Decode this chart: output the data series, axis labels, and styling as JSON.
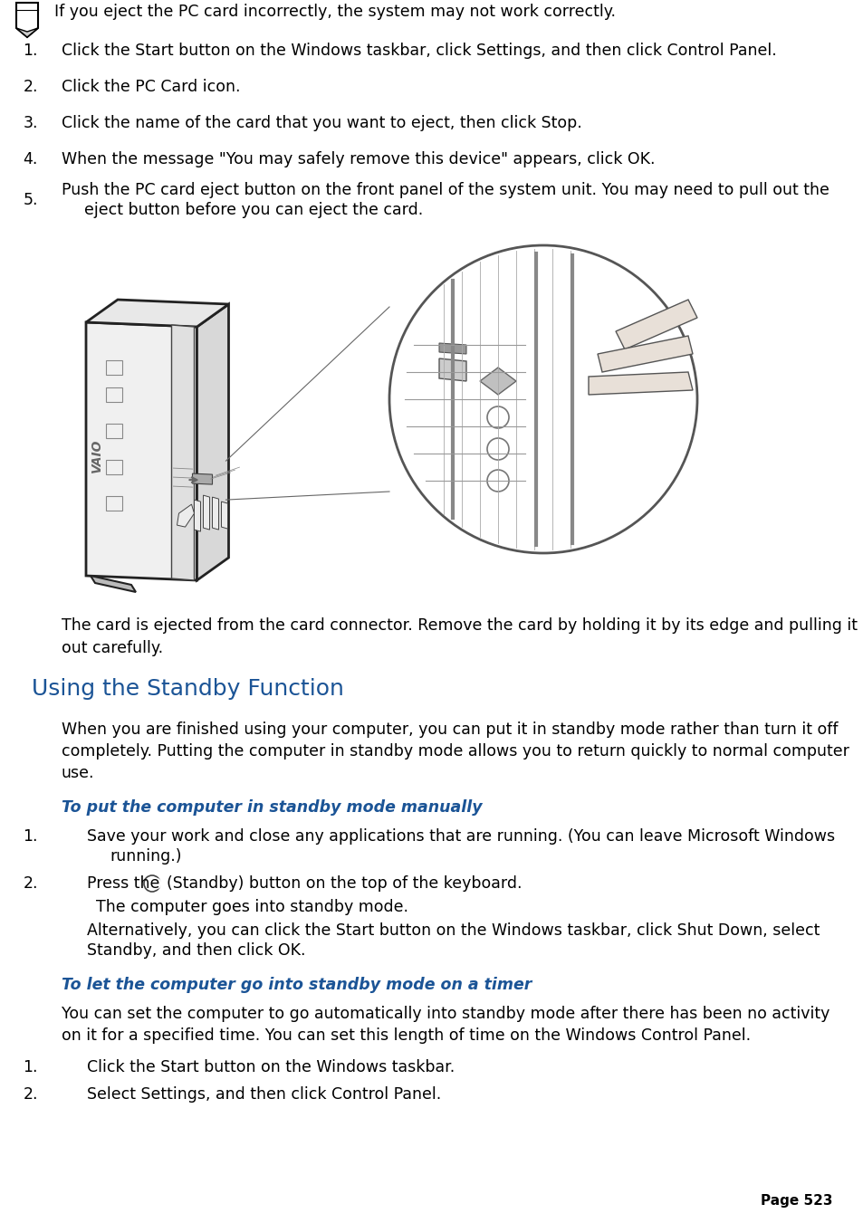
{
  "bg_color": "#ffffff",
  "text_color": "#000000",
  "blue_heading": "#1b5496",
  "blue_subheading": "#1b5496",
  "warning_text": "If you eject the PC card incorrectly, the system may not work correctly.",
  "numbered_items": [
    "Click the Start button on the Windows taskbar, click Settings, and then click Control Panel.",
    "Click the PC Card icon.",
    "Click the name of the card that you want to eject, then click Stop.",
    "When the message \"You may safely remove this device\" appears, click OK.",
    "Push the PC card eject button on the front panel of the system unit. You may need to pull out the",
    "eject button before you can eject the card."
  ],
  "card_ejected_line1": "The card is ejected from the card connector. Remove the card by holding it by its edge and pulling it",
  "card_ejected_line2": "out carefully.",
  "section_heading": "Using the Standby Function",
  "section_para_line1": "When you are finished using your computer, you can put it in standby mode rather than turn it off",
  "section_para_line2": "completely. Putting the computer in standby mode allows you to return quickly to normal computer",
  "section_para_line3": "use.",
  "subheading1": "To put the computer in standby mode manually",
  "sub1_item1_line1": "Save your work and close any applications that are running. (You can leave Microsoft Windows",
  "sub1_item1_line2": "running.)",
  "sub1_item2_pre": "Press the ",
  "sub1_item2_post": "(Standby) button on the top of the keyboard.",
  "sub1_item2_line2": "The computer goes into standby mode.",
  "sub1_item2_line3": "Alternatively, you can click the Start button on the Windows taskbar, click Shut Down, select",
  "sub1_item2_line4": "Standby, and then click OK.",
  "subheading2": "To let the computer go into standby mode on a timer",
  "sub2_para_line1": "You can set the computer to go automatically into standby mode after there has been no activity",
  "sub2_para_line2": "on it for a specified time. You can set this length of time on the Windows Control Panel.",
  "sub2_item1": "Click the Start button on the Windows taskbar.",
  "sub2_item2": "Select Settings, and then click Control Panel.",
  "page_number": "Page 523",
  "fs": 12.5,
  "fs_heading": 18,
  "fs_sub": 12.5
}
